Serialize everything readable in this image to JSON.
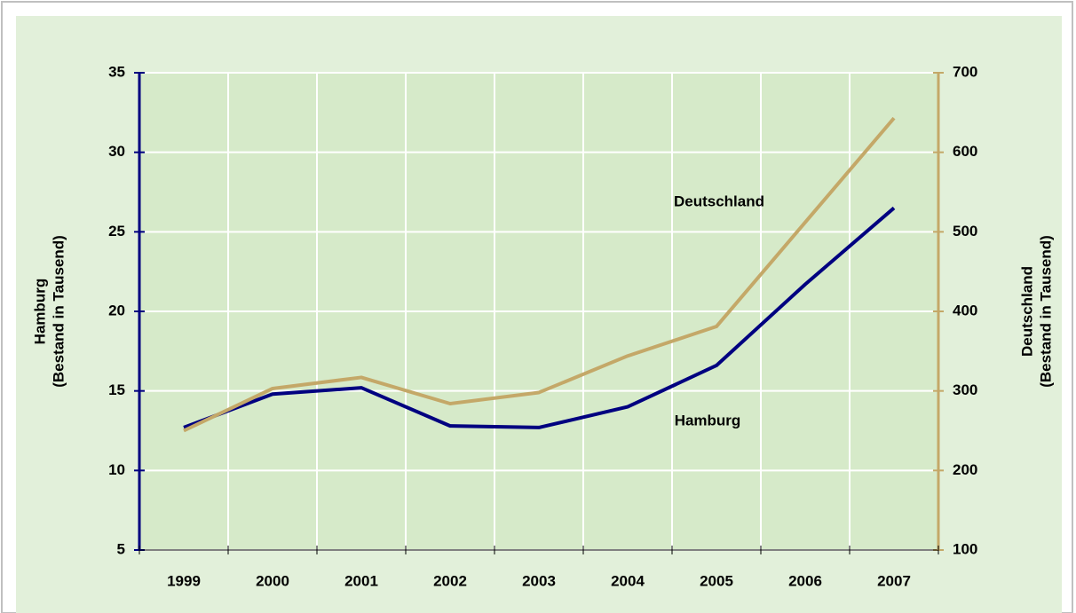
{
  "chart_data": {
    "type": "line",
    "categories": [
      "1999",
      "2000",
      "2001",
      "2002",
      "2003",
      "2004",
      "2005",
      "2006",
      "2007"
    ],
    "series": [
      {
        "name": "Hamburg",
        "color": "#000080",
        "values": [
          12.7,
          14.8,
          15.2,
          12.8,
          12.7,
          14.0,
          16.6,
          21.7,
          26.5
        ]
      },
      {
        "name": "Deutschland",
        "color": "#c4a868",
        "axis": "y2",
        "values": [
          250,
          303,
          317,
          284,
          298,
          344,
          381,
          512,
          643
        ]
      }
    ],
    "ylim": [
      5,
      35
    ],
    "yticks": [
      5,
      10,
      15,
      20,
      25,
      30,
      35
    ],
    "y2lim": [
      100,
      700
    ],
    "y2ticks": [
      100,
      200,
      300,
      400,
      500,
      600,
      700
    ],
    "ylabel": [
      "Hamburg",
      "(Bestand in Tausend)"
    ],
    "y2label": [
      "Deutschland",
      "(Bestand in Tausend)"
    ],
    "grid": true
  }
}
